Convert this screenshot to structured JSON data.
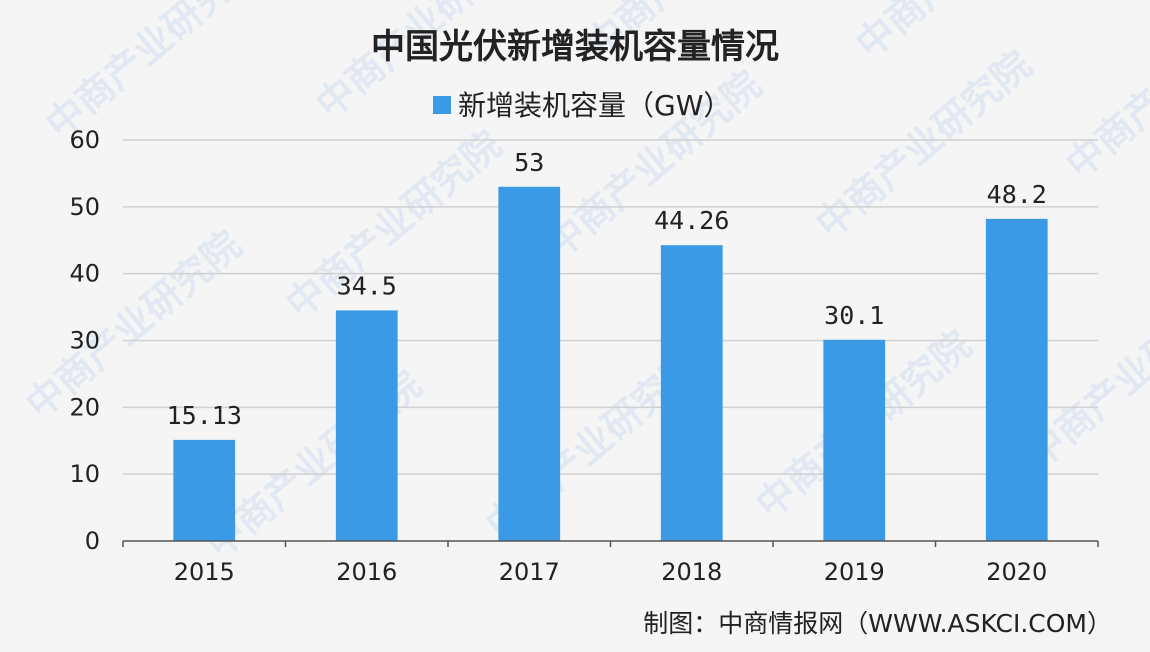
{
  "credit": "制图：中商情报网（WWW.ASKCI.COM）",
  "watermark_text": "中商产业研究院",
  "colors": {
    "bar": "#3a9ae6",
    "grid": "#d0d0d0",
    "axis": "#555555",
    "background": "#f5f5f6"
  },
  "chart_data": {
    "type": "bar",
    "title": "中国光伏新增装机容量情况",
    "categories": [
      "2015",
      "2016",
      "2017",
      "2018",
      "2019",
      "2020"
    ],
    "series": [
      {
        "name": "新增装机容量（GW）",
        "values": [
          15.13,
          34.5,
          53,
          44.26,
          30.1,
          48.2
        ],
        "labels": [
          "15.13",
          "34.5",
          "53",
          "44.26",
          "30.1",
          "48.2"
        ]
      }
    ],
    "yticks": [
      0,
      10,
      20,
      30,
      40,
      50,
      60
    ],
    "ylim": [
      0,
      60
    ],
    "grid": true,
    "legend_position": "top-center"
  }
}
